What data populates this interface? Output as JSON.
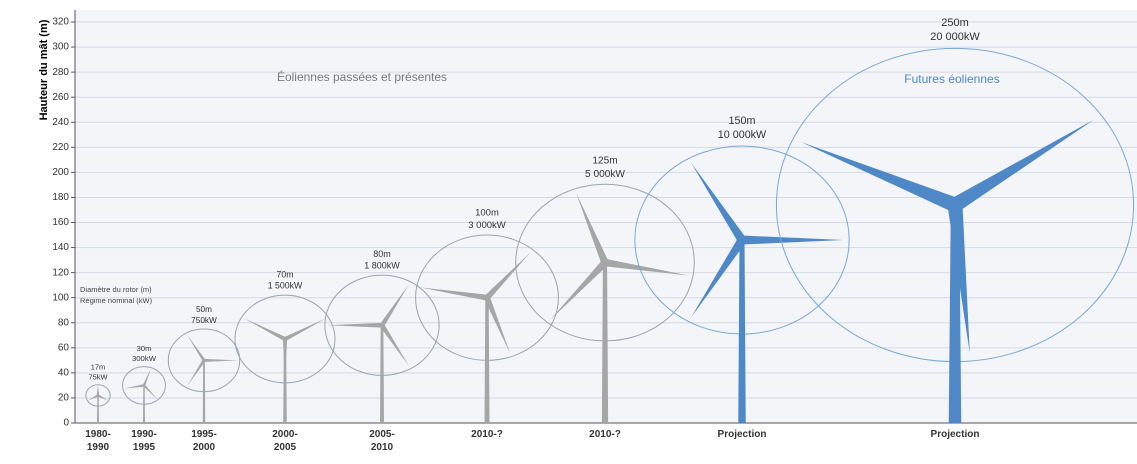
{
  "chart_data": {
    "type": "turbine",
    "y_label": "Hauteur du mât (m)",
    "ylim": [
      0,
      320
    ],
    "yticks": [
      0,
      20,
      40,
      60,
      80,
      100,
      120,
      140,
      160,
      180,
      200,
      220,
      240,
      260,
      280,
      300,
      320
    ],
    "grid": true,
    "annotations": [
      "Éoliennes passées et présentes",
      "Futures éoliennes"
    ],
    "annotation_colors": [
      "#7a7a7a",
      "#4f88c6"
    ],
    "legend": [
      "Diamètre du rotor (m)",
      "Régime nominal (kW)"
    ],
    "categories": [
      "1980-1990",
      "1990-1995",
      "1995-2000",
      "2000-2005",
      "2005-2010",
      "2010-?",
      "2010-?",
      "Projection",
      "Projection"
    ],
    "hub_height": [
      22,
      30,
      50,
      67,
      78,
      100,
      128,
      146,
      174
    ],
    "rotor_diameter": {
      "values": [
        17,
        30,
        50,
        70,
        80,
        100,
        125,
        150,
        250
      ],
      "value_labels": [
        "17m",
        "30m",
        "50m",
        "70m",
        "80m",
        "100m",
        "125m",
        "150m",
        "250m"
      ]
    },
    "rated_power": {
      "values": [
        75,
        300,
        750,
        1500,
        1800,
        3000,
        5000,
        10000,
        20000
      ],
      "value_labels": [
        "75kW",
        "300kW",
        "750kW",
        "1 500kW",
        "1 800kW",
        "3 000kW",
        "5 000kW",
        "10 000kW",
        "20 000kW"
      ]
    },
    "colors": [
      "#a6a6a6",
      "#a6a6a6",
      "#a6a6a6",
      "#a6a6a6",
      "#a6a6a6",
      "#a6a6a6",
      "#a6a6a6",
      "#4f88c6",
      "#4f88c6"
    ]
  }
}
